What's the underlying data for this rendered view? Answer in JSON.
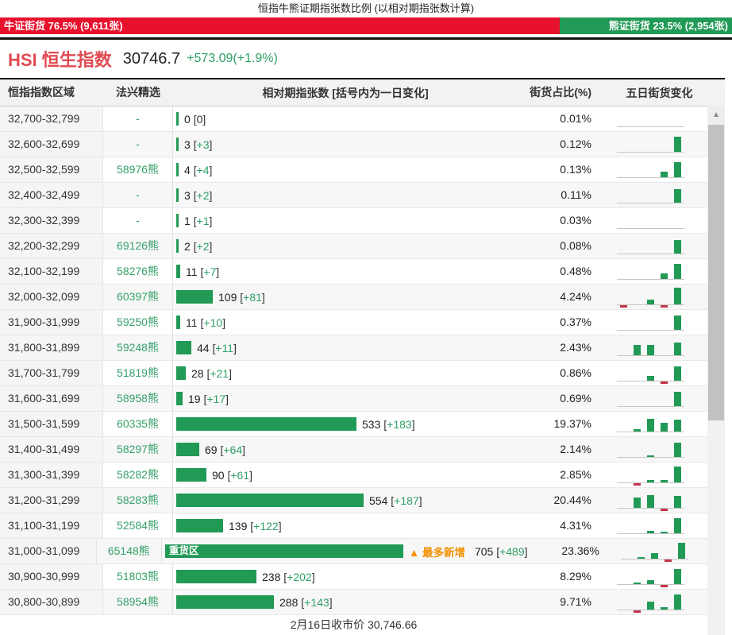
{
  "title": "恒指牛熊证期指张数比例 (以相对期指张数计算)",
  "ratio_bar": {
    "bull": {
      "text": "牛证街货 76.5% (9,611张)",
      "pct_value": 76.5,
      "color": "#e8112d"
    },
    "bear": {
      "text": "熊证街货 23.5% (2,954张)",
      "pct_value": 23.5,
      "color": "#219a56"
    }
  },
  "index_info": {
    "name": "HSI 恒生指数",
    "price": "30746.7",
    "change": "+573.09(+1.9%)"
  },
  "icons": {
    "scroll_up": "▲",
    "max_increase_flag": "▲"
  },
  "colors": {
    "bar_green": "#219a56",
    "text_green": "#2fa066",
    "bull_red": "#e8112d",
    "flag_orange": "#f29100",
    "spark_down_red": "#c2354b"
  },
  "table": {
    "headers": [
      "恒指指数区域",
      "法兴精选",
      "相对期指张数 [括号内为一日变化]",
      "街货占比(%)",
      "五日街货变化"
    ],
    "max_bar_value": 705,
    "rows": [
      {
        "range": "32,700-32,799",
        "pick": "-",
        "value": 0,
        "delta": "0",
        "pct": "0.01%",
        "spark": [
          0,
          0,
          0,
          0,
          0
        ]
      },
      {
        "range": "32,600-32,699",
        "pick": "-",
        "value": 3,
        "delta": "+3",
        "pct": "0.12%",
        "spark": [
          0,
          0,
          0,
          0,
          19
        ]
      },
      {
        "range": "32,500-32,599",
        "pick": "58976熊",
        "value": 4,
        "delta": "+4",
        "pct": "0.13%",
        "spark": [
          0,
          0,
          0,
          7,
          19
        ]
      },
      {
        "range": "32,400-32,499",
        "pick": "-",
        "value": 3,
        "delta": "+2",
        "pct": "0.11%",
        "spark": [
          0,
          0,
          0,
          0,
          17
        ]
      },
      {
        "range": "32,300-32,399",
        "pick": "-",
        "value": 1,
        "delta": "+1",
        "pct": "0.03%",
        "spark": [
          0,
          0,
          0,
          0,
          0
        ]
      },
      {
        "range": "32,200-32,299",
        "pick": "69126熊",
        "value": 2,
        "delta": "+2",
        "pct": "0.08%",
        "spark": [
          0,
          0,
          0,
          0,
          17
        ]
      },
      {
        "range": "32,100-32,199",
        "pick": "58276熊",
        "value": 11,
        "delta": "+7",
        "pct": "0.48%",
        "spark": [
          0,
          0,
          0,
          7,
          19
        ]
      },
      {
        "range": "32,000-32,099",
        "pick": "60397熊",
        "value": 109,
        "delta": "+81",
        "pct": "4.24%",
        "spark": [
          -3,
          0,
          6,
          -3,
          21
        ]
      },
      {
        "range": "31,900-31,999",
        "pick": "59250熊",
        "value": 11,
        "delta": "+10",
        "pct": "0.37%",
        "spark": [
          0,
          0,
          0,
          0,
          18
        ]
      },
      {
        "range": "31,800-31,899",
        "pick": "59248熊",
        "value": 44,
        "delta": "+11",
        "pct": "2.43%",
        "spark": [
          0,
          13,
          13,
          0,
          16
        ]
      },
      {
        "range": "31,700-31,799",
        "pick": "51819熊",
        "value": 28,
        "delta": "+21",
        "pct": "0.86%",
        "spark": [
          0,
          0,
          6,
          -3,
          18
        ]
      },
      {
        "range": "31,600-31,699",
        "pick": "58958熊",
        "value": 19,
        "delta": "+17",
        "pct": "0.69%",
        "spark": [
          0,
          0,
          0,
          0,
          18
        ]
      },
      {
        "range": "31,500-31,599",
        "pick": "60335熊",
        "value": 533,
        "delta": "+183",
        "pct": "19.37%",
        "spark": [
          0,
          3,
          16,
          11,
          15
        ]
      },
      {
        "range": "31,400-31,499",
        "pick": "58297熊",
        "value": 69,
        "delta": "+64",
        "pct": "2.14%",
        "spark": [
          0,
          0,
          2,
          0,
          18
        ]
      },
      {
        "range": "31,300-31,399",
        "pick": "58282熊",
        "value": 90,
        "delta": "+61",
        "pct": "2.85%",
        "spark": [
          0,
          -3,
          3,
          3,
          20
        ]
      },
      {
        "range": "31,200-31,299",
        "pick": "58283熊",
        "value": 554,
        "delta": "+187",
        "pct": "20.44%",
        "spark": [
          0,
          13,
          16,
          -3,
          15
        ]
      },
      {
        "range": "31,100-31,199",
        "pick": "52584熊",
        "value": 139,
        "delta": "+122",
        "pct": "4.31%",
        "spark": [
          0,
          0,
          3,
          2,
          19
        ]
      },
      {
        "range": "31,000-31,099",
        "pick": "65148熊",
        "value": 705,
        "delta": "+489",
        "pct": "23.36%",
        "spark": [
          0,
          2,
          7,
          -3,
          20
        ],
        "bar_label": "重货区",
        "flag": "▲ 最多新增"
      },
      {
        "range": "30,900-30,999",
        "pick": "51803熊",
        "value": 238,
        "delta": "+202",
        "pct": "8.29%",
        "spark": [
          0,
          2,
          5,
          -3,
          19
        ]
      },
      {
        "range": "30,800-30,899",
        "pick": "58954熊",
        "value": 288,
        "delta": "+143",
        "pct": "9.71%",
        "spark": [
          0,
          -3,
          10,
          3,
          19
        ]
      }
    ]
  },
  "footer": "2月16日收市价 30,746.66"
}
